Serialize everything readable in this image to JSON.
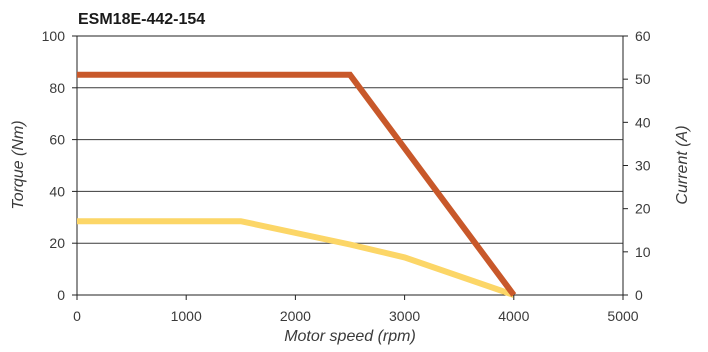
{
  "chart_data": {
    "type": "line",
    "title": "ESM18E-442-154",
    "xlabel": "Motor speed (rpm)",
    "ylabel": "Torque (Nm)",
    "y2label": "Current (A)",
    "xlim": [
      0,
      5000
    ],
    "ylim": [
      0,
      100
    ],
    "y2lim": [
      0,
      60
    ],
    "xticks": [
      0,
      1000,
      2000,
      3000,
      4000,
      5000
    ],
    "yticks": [
      0,
      20,
      40,
      60,
      80,
      100
    ],
    "y2ticks": [
      0,
      10,
      20,
      30,
      40,
      50,
      60
    ],
    "grid": "horizontal",
    "legend": "none",
    "series": [
      {
        "x": [
          0,
          2500,
          4000
        ],
        "y": [
          85,
          85,
          0
        ],
        "axis": "left",
        "color": "#c8582a"
      },
      {
        "x": [
          0,
          1500,
          2500,
          3000,
          4000
        ],
        "y": [
          28.5,
          28.5,
          19.5,
          14.5,
          0
        ],
        "axis": "left",
        "color": "#fcd667"
      }
    ]
  }
}
